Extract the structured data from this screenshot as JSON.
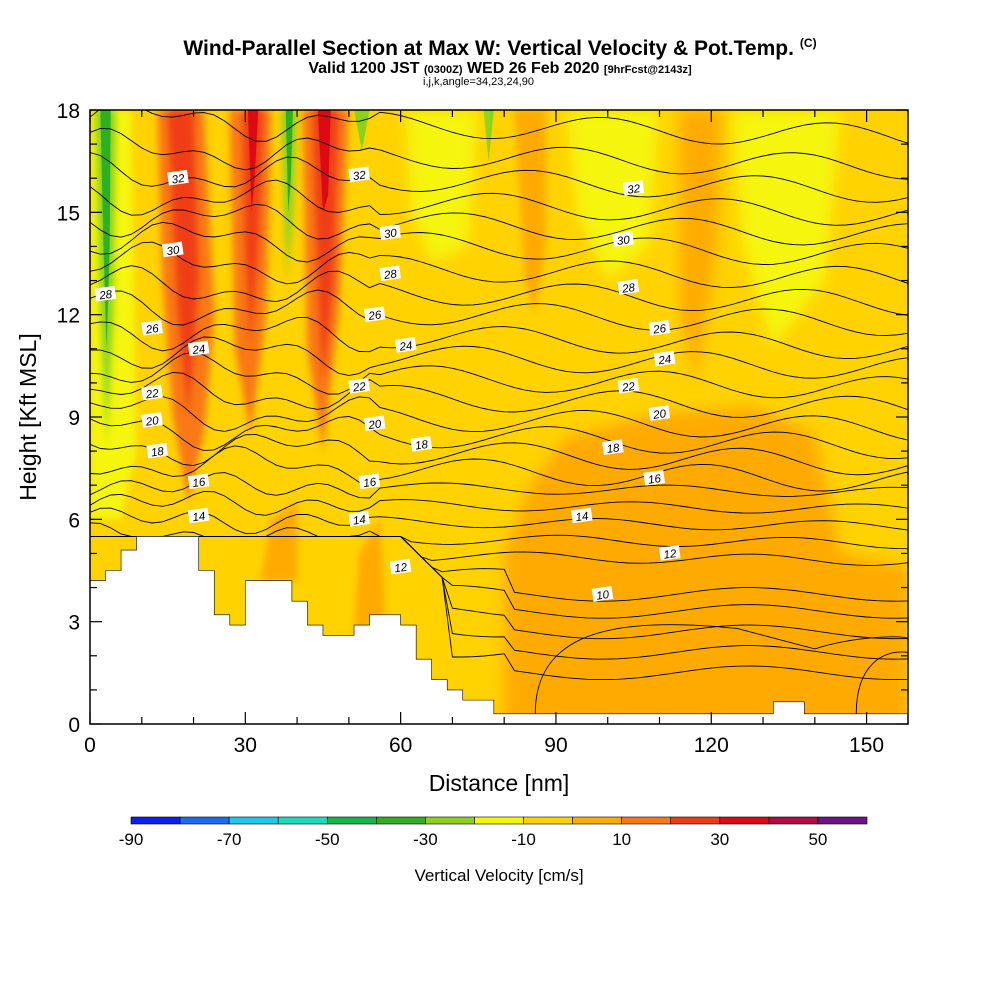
{
  "title": {
    "main": "Wind-Parallel Section at Max W: Vertical Velocity & Pot.Temp.",
    "copyright": "(C)",
    "valid_prefix": "Valid 1200 JST",
    "valid_utc": "(0300Z)",
    "valid_date": "WED 26 Feb 2020",
    "forecast": "[9hrFcst@2143z]",
    "params": "i,j,k,angle=34,23,24,90"
  },
  "chart_data": {
    "type": "heatmap",
    "title": "Wind-Parallel Section at Max W: Vertical Velocity & Pot.Temp.",
    "xlabel": "Distance [nm]",
    "ylabel": "Height [Kft MSL]",
    "xlim": [
      0,
      158
    ],
    "ylim": [
      0,
      18
    ],
    "x_ticks": [
      0,
      30,
      60,
      90,
      120,
      150
    ],
    "y_ticks": [
      0,
      3,
      6,
      9,
      12,
      15,
      18
    ],
    "x_tick_labels": [
      "0",
      "30",
      "60",
      "90",
      "120",
      "150"
    ],
    "y_tick_labels": [
      "0",
      "3",
      "6",
      "9",
      "12",
      "15",
      "18"
    ],
    "grid": false,
    "colorbar": {
      "label": "Vertical Velocity [cm/s]",
      "ticks": [
        "-90",
        "-70",
        "-50",
        "-30",
        "-10",
        "10",
        "30",
        "50"
      ],
      "bounds": [
        -90,
        -80,
        -70,
        -60,
        -50,
        -40,
        -30,
        -20,
        -10,
        0,
        10,
        20,
        30,
        40,
        50,
        60
      ],
      "colors": [
        "#0a1ff0",
        "#1a6cf0",
        "#1ec8f0",
        "#1cdcbe",
        "#18b848",
        "#2fb020",
        "#8cd21c",
        "#f5f50a",
        "#ffd200",
        "#ffaa00",
        "#fa7814",
        "#f03c14",
        "#dc0a14",
        "#b40a46",
        "#6e1488"
      ]
    },
    "background_fill": "#ffd200",
    "velocity_regions": [
      {
        "label": "updraft",
        "value_cm_s": 30,
        "x": 17,
        "y": [
          7,
          18
        ]
      },
      {
        "label": "updraft",
        "value_cm_s": 30,
        "x": 31,
        "y": [
          8,
          18
        ]
      },
      {
        "label": "updraft",
        "value_cm_s": 30,
        "x": 45,
        "y": [
          8,
          18
        ]
      },
      {
        "label": "downdraft",
        "value_cm_s": -30,
        "x": 3,
        "y": [
          8,
          18
        ]
      },
      {
        "label": "downdraft",
        "value_cm_s": -30,
        "x": 38,
        "y": [
          13,
          18
        ]
      },
      {
        "label": "upward",
        "value_cm_s": 10,
        "x": [
          82,
          158
        ],
        "y": [
          0,
          9
        ]
      }
    ],
    "contours": {
      "variable": "Potential Temperature",
      "unit": "C",
      "levels": [
        10,
        12,
        14,
        16,
        18,
        20,
        22,
        24,
        26,
        28,
        30,
        32
      ],
      "labels": [
        {
          "text": "32",
          "x": 17,
          "y": 16.0
        },
        {
          "text": "32",
          "x": 52,
          "y": 16.1
        },
        {
          "text": "32",
          "x": 105,
          "y": 15.7
        },
        {
          "text": "30",
          "x": 16,
          "y": 13.9
        },
        {
          "text": "30",
          "x": 58,
          "y": 14.4
        },
        {
          "text": "30",
          "x": 103,
          "y": 14.2
        },
        {
          "text": "28",
          "x": 3,
          "y": 12.6
        },
        {
          "text": "28",
          "x": 58,
          "y": 13.2
        },
        {
          "text": "28",
          "x": 104,
          "y": 12.8
        },
        {
          "text": "26",
          "x": 12,
          "y": 11.6
        },
        {
          "text": "26",
          "x": 55,
          "y": 12.0
        },
        {
          "text": "26",
          "x": 110,
          "y": 11.6
        },
        {
          "text": "24",
          "x": 21,
          "y": 11.0
        },
        {
          "text": "24",
          "x": 61,
          "y": 11.1
        },
        {
          "text": "24",
          "x": 111,
          "y": 10.7
        },
        {
          "text": "22",
          "x": 12,
          "y": 9.7
        },
        {
          "text": "22",
          "x": 52,
          "y": 9.9
        },
        {
          "text": "22",
          "x": 104,
          "y": 9.9
        },
        {
          "text": "20",
          "x": 12,
          "y": 8.9
        },
        {
          "text": "20",
          "x": 55,
          "y": 8.8
        },
        {
          "text": "20",
          "x": 110,
          "y": 9.1
        },
        {
          "text": "18",
          "x": 13,
          "y": 8.0
        },
        {
          "text": "18",
          "x": 64,
          "y": 8.2
        },
        {
          "text": "18",
          "x": 101,
          "y": 8.1
        },
        {
          "text": "16",
          "x": 21,
          "y": 7.1
        },
        {
          "text": "16",
          "x": 54,
          "y": 7.1
        },
        {
          "text": "16",
          "x": 109,
          "y": 7.2
        },
        {
          "text": "14",
          "x": 21,
          "y": 6.1
        },
        {
          "text": "14",
          "x": 52,
          "y": 6.0
        },
        {
          "text": "14",
          "x": 95,
          "y": 6.1
        },
        {
          "text": "12",
          "x": 60,
          "y": 4.6
        },
        {
          "text": "12",
          "x": 112,
          "y": 5.0
        },
        {
          "text": "10",
          "x": 99,
          "y": 3.8
        }
      ]
    },
    "terrain_kft": [
      [
        0,
        4.2
      ],
      [
        3,
        4.2
      ],
      [
        3,
        4.5
      ],
      [
        6,
        4.5
      ],
      [
        6,
        5.1
      ],
      [
        9,
        5.1
      ],
      [
        9,
        5.5
      ],
      [
        21,
        5.5
      ],
      [
        21,
        4.5
      ],
      [
        24,
        4.5
      ],
      [
        24,
        3.2
      ],
      [
        27,
        3.2
      ],
      [
        27,
        2.9
      ],
      [
        30,
        2.9
      ],
      [
        30,
        4.2
      ],
      [
        39,
        4.2
      ],
      [
        39,
        3.6
      ],
      [
        42,
        3.6
      ],
      [
        42,
        2.9
      ],
      [
        45,
        2.9
      ],
      [
        45,
        2.6
      ],
      [
        51,
        2.6
      ],
      [
        51,
        2.9
      ],
      [
        54,
        2.9
      ],
      [
        54,
        3.2
      ],
      [
        60,
        3.2
      ],
      [
        60,
        2.9
      ],
      [
        63,
        2.9
      ],
      [
        63,
        1.9
      ],
      [
        66,
        1.9
      ],
      [
        66,
        1.3
      ],
      [
        69,
        1.3
      ],
      [
        69,
        1.0
      ],
      [
        72,
        1.0
      ],
      [
        72,
        0.7
      ],
      [
        78,
        0.7
      ],
      [
        78,
        0.3
      ],
      [
        132,
        0.3
      ],
      [
        132,
        0.65
      ],
      [
        138,
        0.65
      ],
      [
        138,
        0.3
      ],
      [
        158,
        0.3
      ]
    ]
  }
}
